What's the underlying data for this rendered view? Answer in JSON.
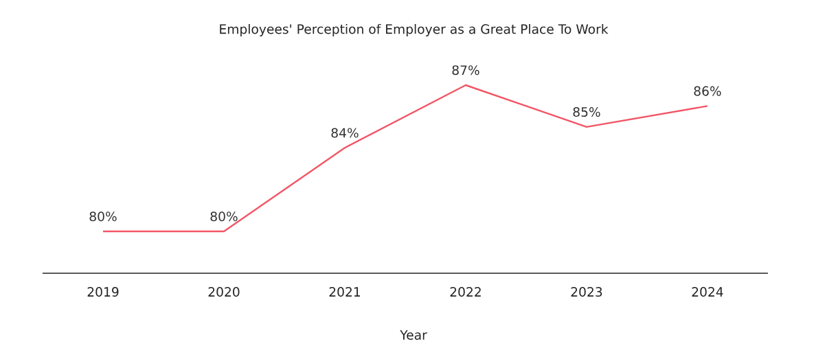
{
  "chart_data": {
    "type": "line",
    "title": "Employees' Perception of Employer as a Great Place To Work",
    "xlabel": "Year",
    "categories": [
      "2019",
      "2020",
      "2021",
      "2022",
      "2023",
      "2024"
    ],
    "values": [
      80,
      80,
      84,
      87,
      85,
      86
    ],
    "value_labels": [
      "80%",
      "80%",
      "84%",
      "87%",
      "85%",
      "86%"
    ],
    "color": "#f25565",
    "tick_labels": "x",
    "marker": "none",
    "line_style": "solid"
  }
}
